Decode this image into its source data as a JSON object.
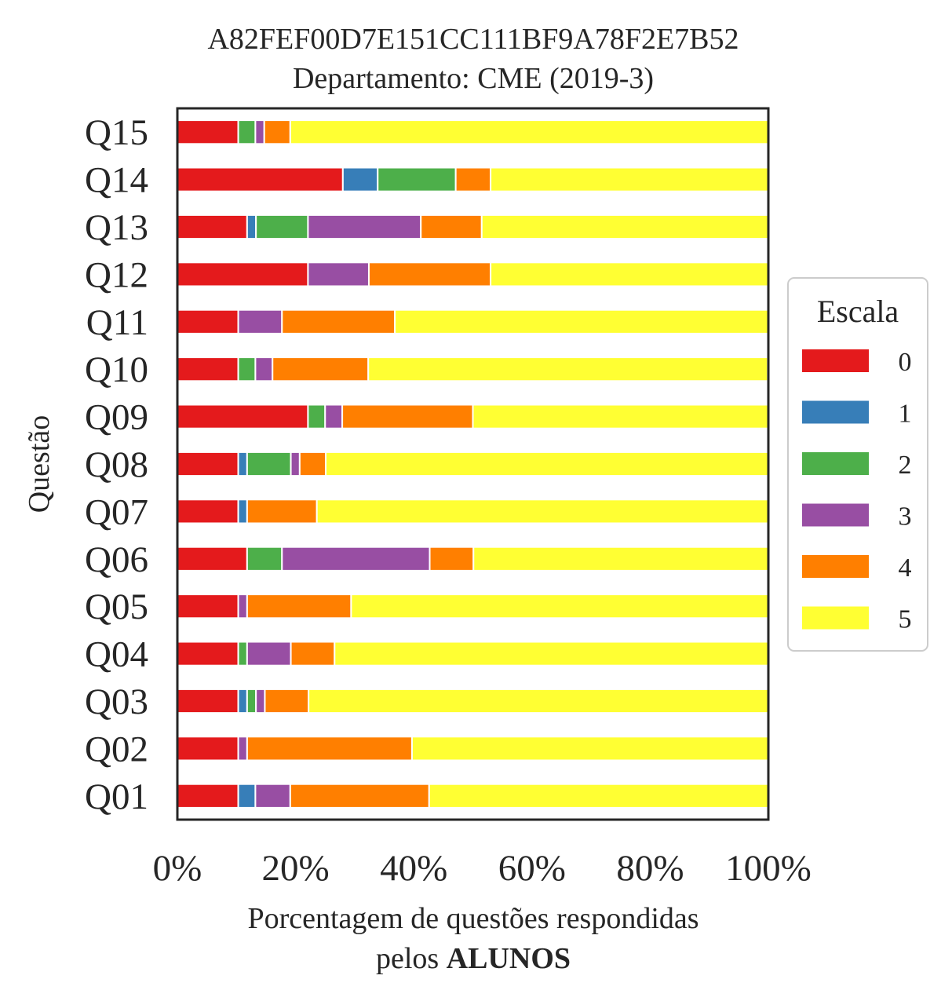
{
  "chart_data": {
    "type": "bar",
    "orientation": "horizontal",
    "stacked": true,
    "title_line1": "A82FEF00D7E151CC111BF9A78F2E7B52",
    "title_line2": "Departamento: CME (2019-3)",
    "xlabel_line1": "Porcentagem de questões respondidas",
    "xlabel_line2_prefix": "pelos ",
    "xlabel_line2_bold": "ALUNOS",
    "ylabel": "Questão",
    "xlim": [
      0,
      100
    ],
    "xticks": [
      "0%",
      "20%",
      "40%",
      "60%",
      "80%",
      "100%"
    ],
    "categories": [
      "Q01",
      "Q02",
      "Q03",
      "Q04",
      "Q05",
      "Q06",
      "Q07",
      "Q08",
      "Q09",
      "Q10",
      "Q11",
      "Q12",
      "Q13",
      "Q14",
      "Q15"
    ],
    "series": [
      {
        "name": "0",
        "color": "#e41a1c",
        "values": [
          10.3,
          10.3,
          10.3,
          10.3,
          10.3,
          11.8,
          10.3,
          10.3,
          22.1,
          10.3,
          10.3,
          22.1,
          11.8,
          28.0,
          10.3
        ]
      },
      {
        "name": "1",
        "color": "#377eb8",
        "values": [
          2.9,
          0,
          1.5,
          0,
          0,
          0,
          1.5,
          1.5,
          0,
          0,
          0,
          0,
          1.5,
          5.9,
          0
        ]
      },
      {
        "name": "2",
        "color": "#4daf4a",
        "values": [
          0,
          0,
          1.5,
          1.5,
          0,
          5.9,
          0,
          7.4,
          2.9,
          2.9,
          0,
          0,
          8.8,
          13.2,
          2.9
        ]
      },
      {
        "name": "3",
        "color": "#984ea3",
        "values": [
          5.9,
          1.5,
          1.5,
          7.4,
          1.5,
          25.0,
          0,
          1.5,
          2.9,
          2.9,
          7.4,
          10.3,
          19.1,
          0,
          1.5
        ]
      },
      {
        "name": "4",
        "color": "#ff7f00",
        "values": [
          23.5,
          27.9,
          7.4,
          7.4,
          17.6,
          7.4,
          11.8,
          4.4,
          22.1,
          16.2,
          19.1,
          20.6,
          10.3,
          5.9,
          4.4
        ]
      },
      {
        "name": "5",
        "color": "#ffff33",
        "values": [
          57.4,
          60.3,
          77.9,
          73.5,
          70.6,
          50.0,
          76.5,
          75.0,
          50.0,
          67.6,
          63.2,
          47.1,
          48.5,
          47.1,
          80.9
        ]
      }
    ],
    "legend_title": "Escala",
    "legend_position": "center-right",
    "grid": false
  }
}
